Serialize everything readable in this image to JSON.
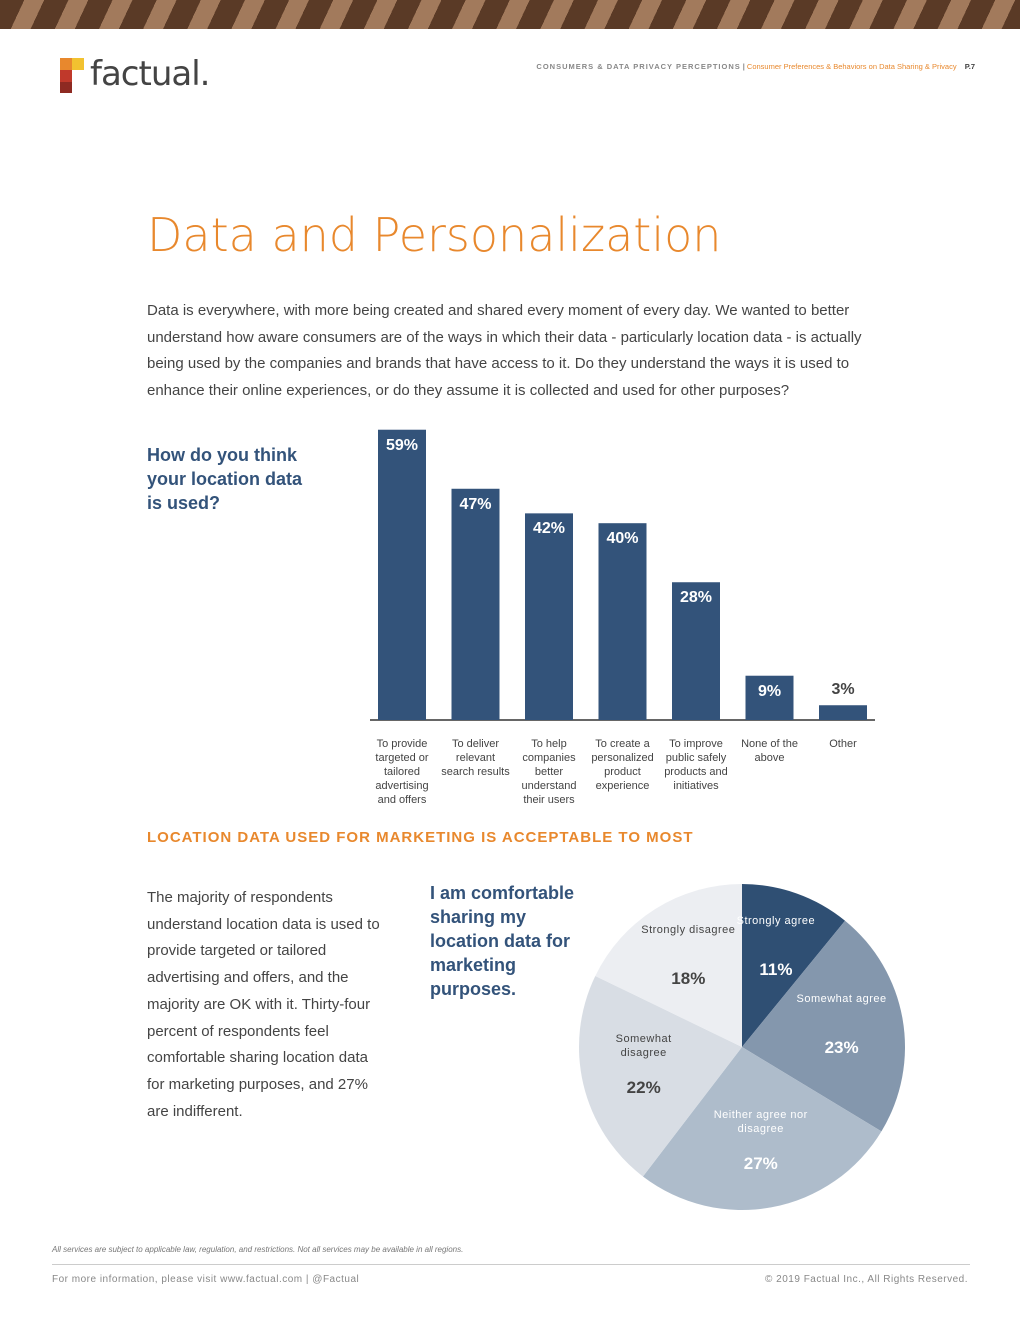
{
  "header": {
    "brand": "factual.",
    "section": "CONSUMERS & DATA PRIVACY PERCEPTIONS",
    "separator": "|",
    "subtitle": "Consumer Preferences & Behaviors on Data Sharing & Privacy",
    "page": "P.7"
  },
  "title": "Data and Personalization",
  "intro": "Data is everywhere, with more being created and shared every moment of every day. We wanted to better understand how aware consumers are of the ways in which their data - particularly location data - is actually being used by the companies and brands that have access to it. Do they understand the ways it is used to enhance their online experiences, or do they assume it is collected and used for other purposes?",
  "section_heading": "LOCATION DATA USED FOR MARKETING IS ACCEPTABLE TO MOST",
  "body": "The majority of respondents understand location data is used to provide targeted or tailored advertising and offers, and the majority are OK with it. Thirty-four percent of respondents feel comfortable sharing location data for marketing purposes, and 27% are indifferent.",
  "chart_data": [
    {
      "type": "bar",
      "title": "How do you think your location data is used?",
      "categories": [
        "To provide targeted or tailored advertising and offers",
        "To deliver relevant search results",
        "To help companies better understand their users",
        "To create a personalized product experience",
        "To improve public safely products and initiatives",
        "None of the above",
        "Other"
      ],
      "values": [
        59,
        47,
        42,
        40,
        28,
        9,
        3
      ],
      "value_labels": [
        "59%",
        "47%",
        "42%",
        "40%",
        "28%",
        "9%",
        "3%"
      ],
      "color": "#33537a"
    },
    {
      "type": "pie",
      "title": "I am comfortable sharing my location data for marketing purposes.",
      "categories": [
        "Strongly agree",
        "Somewhat agree",
        "Neither agree nor disagree",
        "Somewhat disagree",
        "Strongly disagree"
      ],
      "values": [
        11,
        23,
        27,
        22,
        18
      ],
      "value_labels": [
        "11%",
        "23%",
        "27%",
        "22%",
        "18%"
      ],
      "colors": [
        "#2f4f73",
        "#8497ad",
        "#aebccb",
        "#d8dde4",
        "#eceef2"
      ]
    }
  ],
  "footer": {
    "disclaimer": "All services are subject to applicable law, regulation, and restrictions. Not all services may be available in all regions.",
    "contact": "For more information, please visit www.factual.com | @Factual",
    "copyright": "© 2019 Factual Inc., All Rights Reserved."
  }
}
